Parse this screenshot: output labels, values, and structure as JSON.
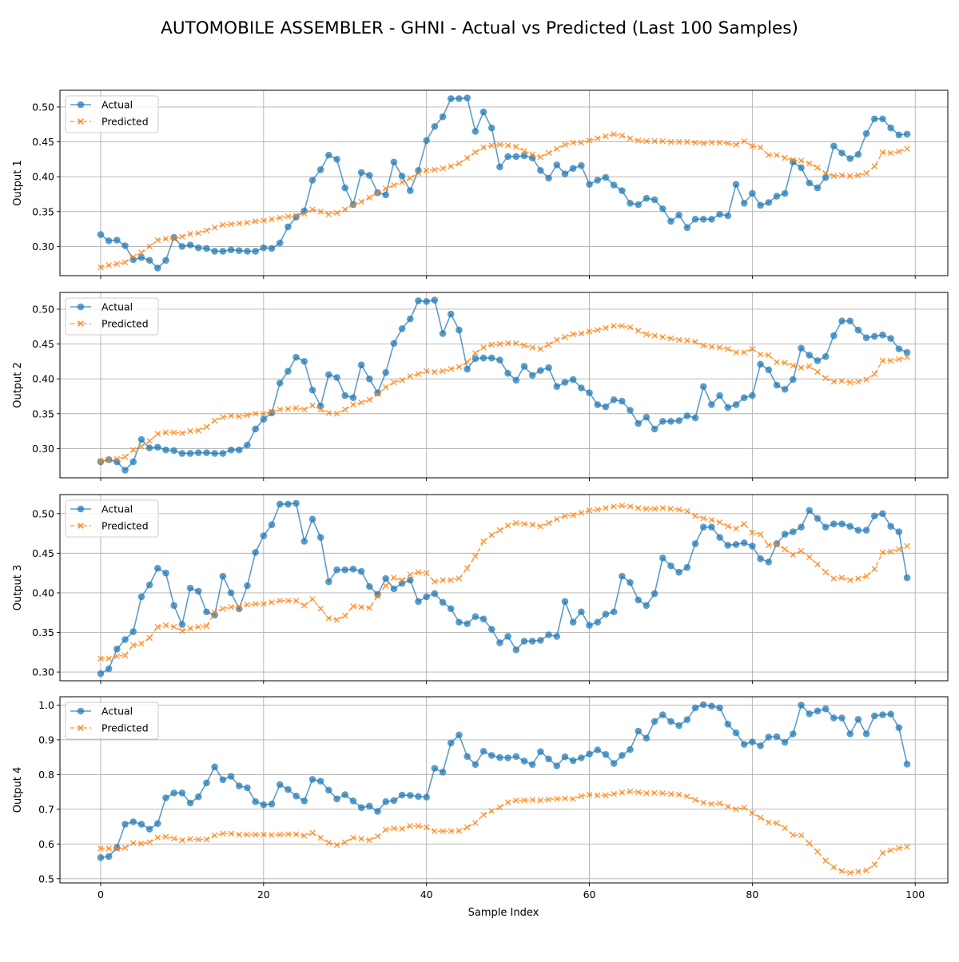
{
  "title": "AUTOMOBILE ASSEMBLER - GHNI - Actual vs Predicted (Last 100 Samples)",
  "xlabel": "Sample Index",
  "colors": {
    "actual": "#1f77b4",
    "predicted": "#ff7f0e",
    "grid": "#b0b0b0"
  },
  "legend": {
    "actual": "Actual",
    "predicted": "Predicted",
    "position": "upper-left"
  },
  "chart_data": [
    {
      "type": "line",
      "ylabel": "Output 1",
      "xlim": [
        -5,
        104
      ],
      "ylim": [
        0.258,
        0.524
      ],
      "xticks": [
        0,
        20,
        40,
        60,
        80,
        100
      ],
      "yticks": [
        0.3,
        0.35,
        0.4,
        0.45,
        0.5
      ],
      "grid": true,
      "series": [
        {
          "name": "Actual",
          "values": [
            0.317,
            0.308,
            0.309,
            0.301,
            0.281,
            0.284,
            0.28,
            0.269,
            0.28,
            0.313,
            0.3,
            0.302,
            0.298,
            0.297,
            0.293,
            0.293,
            0.295,
            0.294,
            0.293,
            0.293,
            0.298,
            0.297,
            0.305,
            0.328,
            0.342,
            0.351,
            0.395,
            0.41,
            0.431,
            0.425,
            0.384,
            0.36,
            0.406,
            0.402,
            0.377,
            0.374,
            0.421,
            0.401,
            0.38,
            0.409,
            0.452,
            0.472,
            0.486,
            0.512,
            0.512,
            0.513,
            0.465,
            0.493,
            0.47,
            0.414,
            0.429,
            0.429,
            0.43,
            0.427,
            0.409,
            0.398,
            0.417,
            0.404,
            0.412,
            0.416,
            0.389,
            0.395,
            0.399,
            0.388,
            0.38,
            0.362,
            0.36,
            0.369,
            0.367,
            0.354,
            0.336,
            0.345,
            0.327,
            0.339,
            0.339,
            0.339,
            0.346,
            0.344,
            0.389,
            0.362,
            0.376,
            0.359,
            0.363,
            0.372,
            0.376,
            0.421,
            0.413,
            0.391,
            0.384,
            0.399,
            0.444,
            0.434,
            0.426,
            0.432,
            0.462,
            0.483,
            0.483,
            0.47,
            0.46,
            0.461
          ]
        },
        {
          "name": "Predicted",
          "values": [
            0.27,
            0.273,
            0.275,
            0.277,
            0.285,
            0.291,
            0.3,
            0.309,
            0.311,
            0.311,
            0.314,
            0.318,
            0.319,
            0.323,
            0.327,
            0.331,
            0.332,
            0.333,
            0.334,
            0.336,
            0.337,
            0.339,
            0.341,
            0.343,
            0.344,
            0.347,
            0.353,
            0.35,
            0.346,
            0.348,
            0.353,
            0.36,
            0.364,
            0.37,
            0.377,
            0.383,
            0.388,
            0.392,
            0.398,
            0.405,
            0.409,
            0.41,
            0.412,
            0.415,
            0.419,
            0.427,
            0.435,
            0.442,
            0.445,
            0.446,
            0.445,
            0.443,
            0.437,
            0.432,
            0.428,
            0.434,
            0.44,
            0.446,
            0.449,
            0.449,
            0.452,
            0.455,
            0.458,
            0.461,
            0.459,
            0.455,
            0.452,
            0.451,
            0.451,
            0.451,
            0.45,
            0.45,
            0.45,
            0.449,
            0.448,
            0.449,
            0.449,
            0.448,
            0.446,
            0.451,
            0.444,
            0.442,
            0.431,
            0.431,
            0.427,
            0.424,
            0.423,
            0.419,
            0.413,
            0.405,
            0.401,
            0.402,
            0.401,
            0.402,
            0.405,
            0.415,
            0.435,
            0.434,
            0.436,
            0.44
          ]
        }
      ]
    },
    {
      "type": "line",
      "ylabel": "Output 2",
      "xlim": [
        -5,
        104
      ],
      "ylim": [
        0.258,
        0.524
      ],
      "xticks": [
        0,
        20,
        40,
        60,
        80,
        100
      ],
      "yticks": [
        0.3,
        0.35,
        0.4,
        0.45,
        0.5
      ],
      "grid": true,
      "series": [
        {
          "name": "Actual",
          "values": [
            0.281,
            0.284,
            0.281,
            0.269,
            0.281,
            0.313,
            0.301,
            0.302,
            0.298,
            0.297,
            0.293,
            0.293,
            0.294,
            0.294,
            0.293,
            0.293,
            0.298,
            0.298,
            0.305,
            0.328,
            0.342,
            0.351,
            0.394,
            0.411,
            0.431,
            0.425,
            0.384,
            0.361,
            0.406,
            0.402,
            0.376,
            0.373,
            0.42,
            0.4,
            0.38,
            0.409,
            0.451,
            0.472,
            0.486,
            0.512,
            0.511,
            0.513,
            0.465,
            0.493,
            0.47,
            0.414,
            0.429,
            0.43,
            0.43,
            0.427,
            0.408,
            0.398,
            0.418,
            0.405,
            0.412,
            0.416,
            0.389,
            0.395,
            0.399,
            0.387,
            0.38,
            0.363,
            0.36,
            0.37,
            0.368,
            0.355,
            0.336,
            0.345,
            0.328,
            0.339,
            0.339,
            0.34,
            0.347,
            0.344,
            0.389,
            0.363,
            0.376,
            0.359,
            0.363,
            0.373,
            0.376,
            0.421,
            0.413,
            0.391,
            0.385,
            0.399,
            0.444,
            0.434,
            0.426,
            0.432,
            0.462,
            0.483,
            0.483,
            0.47,
            0.459,
            0.461,
            0.463,
            0.458,
            0.443,
            0.438
          ]
        },
        {
          "name": "Predicted",
          "values": [
            0.282,
            0.284,
            0.285,
            0.288,
            0.298,
            0.303,
            0.311,
            0.321,
            0.323,
            0.323,
            0.322,
            0.325,
            0.326,
            0.331,
            0.34,
            0.345,
            0.347,
            0.346,
            0.348,
            0.35,
            0.35,
            0.353,
            0.356,
            0.357,
            0.358,
            0.356,
            0.362,
            0.356,
            0.351,
            0.35,
            0.356,
            0.363,
            0.366,
            0.37,
            0.378,
            0.388,
            0.395,
            0.398,
            0.404,
            0.407,
            0.411,
            0.41,
            0.411,
            0.414,
            0.417,
            0.424,
            0.437,
            0.445,
            0.449,
            0.45,
            0.451,
            0.451,
            0.448,
            0.445,
            0.443,
            0.449,
            0.456,
            0.46,
            0.464,
            0.465,
            0.468,
            0.47,
            0.473,
            0.476,
            0.476,
            0.474,
            0.469,
            0.464,
            0.462,
            0.46,
            0.458,
            0.456,
            0.455,
            0.453,
            0.448,
            0.446,
            0.445,
            0.443,
            0.438,
            0.438,
            0.443,
            0.435,
            0.434,
            0.424,
            0.423,
            0.419,
            0.416,
            0.418,
            0.41,
            0.401,
            0.396,
            0.397,
            0.395,
            0.396,
            0.399,
            0.407,
            0.426,
            0.426,
            0.428,
            0.431
          ]
        }
      ]
    },
    {
      "type": "line",
      "ylabel": "Output 3",
      "xlim": [
        -5,
        104
      ],
      "ylim": [
        0.289,
        0.524
      ],
      "xticks": [
        0,
        20,
        40,
        60,
        80,
        100
      ],
      "yticks": [
        0.3,
        0.35,
        0.4,
        0.45,
        0.5
      ],
      "grid": true,
      "series": [
        {
          "name": "Actual",
          "values": [
            0.298,
            0.304,
            0.329,
            0.341,
            0.351,
            0.395,
            0.41,
            0.431,
            0.425,
            0.384,
            0.36,
            0.406,
            0.402,
            0.376,
            0.372,
            0.421,
            0.4,
            0.38,
            0.409,
            0.451,
            0.472,
            0.486,
            0.512,
            0.512,
            0.513,
            0.465,
            0.493,
            0.47,
            0.414,
            0.429,
            0.429,
            0.43,
            0.427,
            0.408,
            0.398,
            0.418,
            0.405,
            0.412,
            0.416,
            0.389,
            0.395,
            0.399,
            0.388,
            0.38,
            0.363,
            0.361,
            0.37,
            0.367,
            0.354,
            0.337,
            0.345,
            0.328,
            0.339,
            0.339,
            0.34,
            0.347,
            0.345,
            0.389,
            0.363,
            0.376,
            0.359,
            0.363,
            0.373,
            0.376,
            0.421,
            0.413,
            0.391,
            0.384,
            0.399,
            0.444,
            0.434,
            0.426,
            0.432,
            0.462,
            0.483,
            0.483,
            0.47,
            0.46,
            0.461,
            0.463,
            0.459,
            0.443,
            0.439,
            0.462,
            0.474,
            0.477,
            0.483,
            0.504,
            0.494,
            0.483,
            0.487,
            0.487,
            0.484,
            0.479,
            0.479,
            0.497,
            0.5,
            0.484,
            0.477,
            0.419
          ]
        },
        {
          "name": "Predicted",
          "values": [
            0.317,
            0.317,
            0.32,
            0.321,
            0.334,
            0.336,
            0.343,
            0.357,
            0.359,
            0.357,
            0.352,
            0.355,
            0.357,
            0.358,
            0.375,
            0.38,
            0.382,
            0.383,
            0.385,
            0.386,
            0.386,
            0.388,
            0.39,
            0.39,
            0.39,
            0.384,
            0.392,
            0.38,
            0.368,
            0.366,
            0.371,
            0.383,
            0.382,
            0.381,
            0.396,
            0.409,
            0.419,
            0.416,
            0.423,
            0.426,
            0.425,
            0.414,
            0.416,
            0.416,
            0.418,
            0.431,
            0.446,
            0.465,
            0.473,
            0.479,
            0.485,
            0.488,
            0.487,
            0.486,
            0.484,
            0.488,
            0.493,
            0.497,
            0.498,
            0.501,
            0.504,
            0.505,
            0.507,
            0.509,
            0.51,
            0.509,
            0.507,
            0.506,
            0.506,
            0.507,
            0.506,
            0.505,
            0.503,
            0.497,
            0.494,
            0.492,
            0.489,
            0.484,
            0.481,
            0.487,
            0.476,
            0.474,
            0.46,
            0.461,
            0.455,
            0.448,
            0.453,
            0.445,
            0.436,
            0.426,
            0.418,
            0.419,
            0.416,
            0.418,
            0.421,
            0.43,
            0.451,
            0.452,
            0.455,
            0.459
          ]
        }
      ]
    },
    {
      "type": "line",
      "ylabel": "Output 4",
      "xlim": [
        -5,
        104
      ],
      "ylim": [
        0.488,
        1.024
      ],
      "xticks": [
        0,
        20,
        40,
        60,
        80,
        100
      ],
      "yticks": [
        0.5,
        0.6,
        0.7,
        0.8,
        0.9,
        1.0
      ],
      "grid": true,
      "series": [
        {
          "name": "Actual",
          "values": [
            0.561,
            0.564,
            0.59,
            0.657,
            0.664,
            0.657,
            0.643,
            0.659,
            0.733,
            0.747,
            0.747,
            0.718,
            0.736,
            0.776,
            0.822,
            0.785,
            0.795,
            0.767,
            0.762,
            0.722,
            0.713,
            0.715,
            0.771,
            0.757,
            0.738,
            0.724,
            0.786,
            0.781,
            0.755,
            0.73,
            0.742,
            0.724,
            0.705,
            0.709,
            0.694,
            0.722,
            0.725,
            0.741,
            0.74,
            0.737,
            0.735,
            0.818,
            0.807,
            0.891,
            0.914,
            0.852,
            0.829,
            0.867,
            0.855,
            0.849,
            0.848,
            0.852,
            0.839,
            0.829,
            0.866,
            0.845,
            0.825,
            0.851,
            0.84,
            0.848,
            0.859,
            0.871,
            0.858,
            0.832,
            0.855,
            0.872,
            0.925,
            0.905,
            0.953,
            0.972,
            0.953,
            0.941,
            0.958,
            0.992,
            1.001,
            0.997,
            0.992,
            0.945,
            0.92,
            0.887,
            0.894,
            0.883,
            0.908,
            0.909,
            0.893,
            0.917,
            1.0,
            0.975,
            0.983,
            0.989,
            0.963,
            0.963,
            0.917,
            0.959,
            0.917,
            0.969,
            0.972,
            0.974,
            0.935,
            0.83
          ]
        },
        {
          "name": "Predicted",
          "values": [
            0.587,
            0.587,
            0.586,
            0.589,
            0.603,
            0.601,
            0.605,
            0.619,
            0.621,
            0.616,
            0.611,
            0.614,
            0.613,
            0.613,
            0.625,
            0.63,
            0.63,
            0.627,
            0.627,
            0.627,
            0.627,
            0.626,
            0.627,
            0.628,
            0.628,
            0.624,
            0.632,
            0.618,
            0.604,
            0.597,
            0.605,
            0.618,
            0.615,
            0.611,
            0.622,
            0.641,
            0.645,
            0.644,
            0.652,
            0.652,
            0.648,
            0.637,
            0.637,
            0.637,
            0.638,
            0.648,
            0.661,
            0.684,
            0.695,
            0.706,
            0.72,
            0.725,
            0.726,
            0.727,
            0.726,
            0.728,
            0.73,
            0.731,
            0.73,
            0.738,
            0.742,
            0.74,
            0.74,
            0.744,
            0.748,
            0.751,
            0.749,
            0.746,
            0.747,
            0.746,
            0.744,
            0.742,
            0.737,
            0.727,
            0.719,
            0.715,
            0.717,
            0.708,
            0.7,
            0.705,
            0.689,
            0.676,
            0.662,
            0.66,
            0.646,
            0.626,
            0.625,
            0.602,
            0.578,
            0.552,
            0.533,
            0.522,
            0.517,
            0.52,
            0.524,
            0.541,
            0.574,
            0.582,
            0.588,
            0.592
          ]
        }
      ]
    }
  ]
}
